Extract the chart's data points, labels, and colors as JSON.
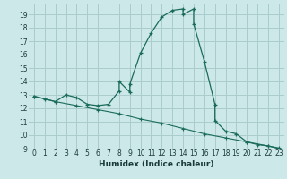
{
  "xlabel": "Humidex (Indice chaleur)",
  "bg_color": "#cce8e8",
  "grid_color": "#aacccc",
  "line_color": "#1a6b5a",
  "xlim": [
    -0.5,
    23.5
  ],
  "ylim": [
    9,
    19.8
  ],
  "xticks": [
    0,
    1,
    2,
    3,
    4,
    5,
    6,
    7,
    8,
    9,
    10,
    11,
    12,
    13,
    14,
    15,
    16,
    17,
    18,
    19,
    20,
    21,
    22,
    23
  ],
  "yticks": [
    9,
    10,
    11,
    12,
    13,
    14,
    15,
    16,
    17,
    18,
    19
  ],
  "curve1_x": [
    0,
    1,
    2,
    3,
    4,
    5,
    6,
    7,
    8,
    8,
    9,
    9,
    10,
    11,
    12,
    13,
    14,
    14,
    15,
    15,
    16,
    17,
    17,
    18,
    19,
    20,
    21,
    22,
    23
  ],
  "curve1_y": [
    12.9,
    12.7,
    12.5,
    13.0,
    12.8,
    12.3,
    12.2,
    12.3,
    13.3,
    14.0,
    13.2,
    13.8,
    16.1,
    17.6,
    18.8,
    19.3,
    19.4,
    19.0,
    19.4,
    18.3,
    15.5,
    12.3,
    11.1,
    10.3,
    10.1,
    9.5,
    9.3,
    9.2,
    9.0
  ],
  "curve2_x": [
    0,
    2,
    4,
    6,
    8,
    10,
    12,
    14,
    16,
    18,
    20,
    22,
    23
  ],
  "curve2_y": [
    12.9,
    12.5,
    12.2,
    11.9,
    11.6,
    11.2,
    10.9,
    10.5,
    10.1,
    9.8,
    9.5,
    9.2,
    9.05
  ]
}
